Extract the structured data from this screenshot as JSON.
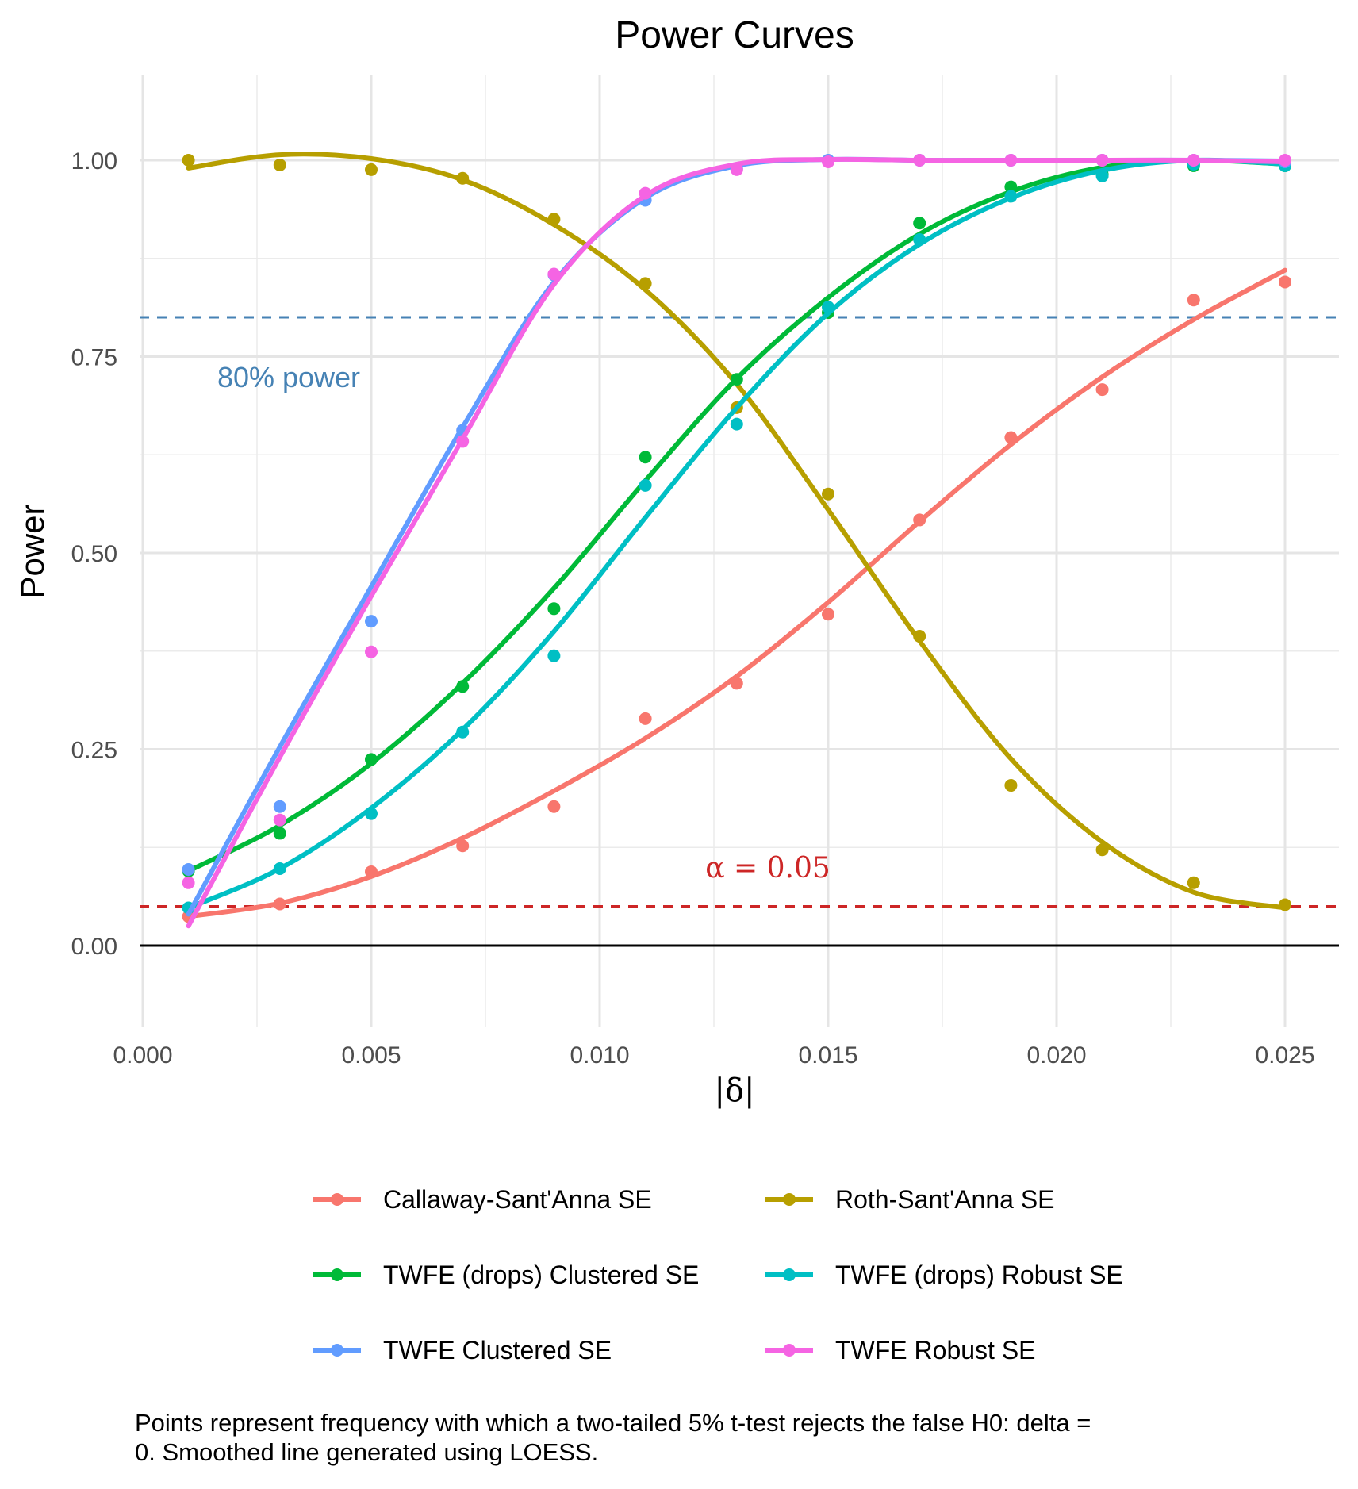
{
  "chart_data": {
    "type": "line",
    "title": "Power Curves",
    "xlabel": "|δ|",
    "ylabel": "Power",
    "xlim": [
      -0.0001,
      0.0263
    ],
    "ylim": [
      -0.1,
      1.1
    ],
    "x_ticks": [
      0.0,
      0.005,
      0.01,
      0.015,
      0.02,
      0.025
    ],
    "x_tick_labels": [
      "0.000",
      "0.005",
      "0.010",
      "0.015",
      "0.020",
      "0.025"
    ],
    "y_ticks": [
      0.0,
      0.25,
      0.5,
      0.75,
      1.0
    ],
    "y_tick_labels": [
      "0.00",
      "0.25",
      "0.50",
      "0.75",
      "1.00"
    ],
    "grid": true,
    "legend_position": "bottom",
    "x": [
      0.001,
      0.003,
      0.005,
      0.007,
      0.009,
      0.011,
      0.013,
      0.015,
      0.017,
      0.019,
      0.021,
      0.023,
      0.025
    ],
    "series": [
      {
        "name": "Callaway-Sant'Anna SE",
        "color": "#F8766D",
        "points": [
          0.037,
          0.053,
          0.094,
          0.127,
          0.177,
          0.289,
          0.334,
          0.422,
          0.542,
          0.647,
          0.708,
          0.822,
          0.845
        ],
        "smooth": [
          0.037,
          0.054,
          0.088,
          0.137,
          0.197,
          0.264,
          0.343,
          0.437,
          0.54,
          0.638,
          0.724,
          0.797,
          0.86
        ]
      },
      {
        "name": "Roth-Sant'Anna SE",
        "color": "#B79F00",
        "points": [
          1.0,
          0.994,
          0.988,
          0.977,
          0.925,
          0.843,
          0.685,
          0.575,
          0.394,
          0.204,
          0.122,
          0.08,
          0.052
        ],
        "smooth": [
          0.99,
          1.007,
          1.002,
          0.975,
          0.918,
          0.835,
          0.715,
          0.555,
          0.388,
          0.238,
          0.132,
          0.068,
          0.048
        ]
      },
      {
        "name": "TWFE (drops) Clustered SE",
        "color": "#00BA38",
        "points": [
          0.095,
          0.143,
          0.237,
          0.33,
          0.429,
          0.622,
          0.721,
          0.806,
          0.92,
          0.966,
          0.982,
          0.993,
          0.993
        ],
        "smooth": [
          0.095,
          0.153,
          0.232,
          0.334,
          0.455,
          0.592,
          0.722,
          0.825,
          0.906,
          0.96,
          0.991,
          1.0,
          0.995
        ]
      },
      {
        "name": "TWFE (drops) Robust SE",
        "color": "#00BFC4",
        "points": [
          0.048,
          0.098,
          0.168,
          0.272,
          0.369,
          0.586,
          0.664,
          0.813,
          0.899,
          0.954,
          0.98,
          0.995,
          0.993
        ],
        "smooth": [
          0.048,
          0.098,
          0.175,
          0.275,
          0.4,
          0.545,
          0.685,
          0.805,
          0.893,
          0.952,
          0.987,
          1.0,
          0.995
        ]
      },
      {
        "name": "TWFE Clustered SE",
        "color": "#619CFF",
        "points": [
          0.097,
          0.177,
          0.413,
          0.656,
          0.854,
          0.949,
          0.989,
          1.0,
          1.0,
          1.0,
          1.0,
          1.0,
          0.998
        ],
        "smooth": [
          0.04,
          0.253,
          0.457,
          0.66,
          0.845,
          0.952,
          0.993,
          1.001,
          1.0,
          1.0,
          1.0,
          1.0,
          0.999
        ]
      },
      {
        "name": "TWFE Robust SE",
        "color": "#F564E3",
        "points": [
          0.08,
          0.16,
          0.374,
          0.642,
          0.855,
          0.958,
          0.988,
          0.998,
          1.0,
          1.0,
          1.0,
          1.0,
          1.0
        ],
        "smooth": [
          0.025,
          0.24,
          0.445,
          0.645,
          0.842,
          0.955,
          0.995,
          1.001,
          1.0,
          1.0,
          1.0,
          1.0,
          0.998
        ]
      }
    ],
    "reference_lines": [
      {
        "y": 0.8,
        "color": "#4682B4",
        "label": "80% power"
      },
      {
        "y": 0.05,
        "color": "#CD2626",
        "label": "α = 0.05"
      }
    ],
    "caption": "Points represent frequency with which a two-tailed 5% t-test rejects the false H0: delta =",
    "caption_line2": "0. Smoothed line generated using LOESS."
  }
}
